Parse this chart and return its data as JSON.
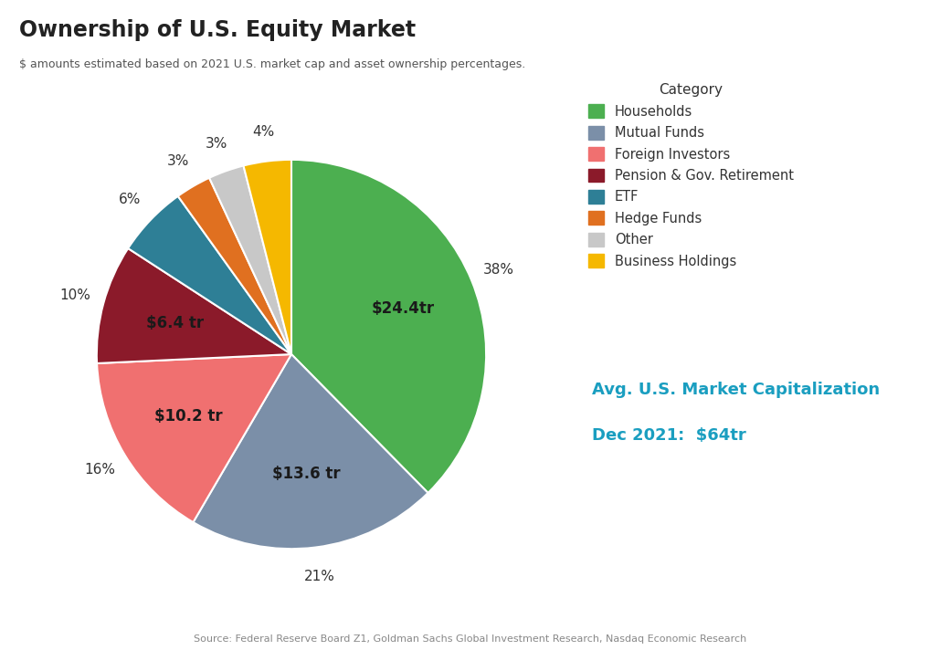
{
  "title": "Ownership of U.S. Equity Market",
  "subtitle": "$ amounts estimated based on 2021 U.S. market cap and asset ownership percentages.",
  "categories": [
    "Households",
    "Mutual Funds",
    "Foreign Investors",
    "Pension & Gov. Retirement",
    "ETF",
    "Hedge Funds",
    "Other",
    "Business Holdings"
  ],
  "values": [
    38,
    21,
    16,
    10,
    6,
    3,
    3,
    4
  ],
  "colors": [
    "#4caf50",
    "#7b8fa8",
    "#f07070",
    "#8b1a2a",
    "#2e7f96",
    "#e07020",
    "#c8c8c8",
    "#f5b800"
  ],
  "labels_inside": [
    "$24.4tr",
    "$13.6 tr",
    "$10.2 tr",
    "$6.4 tr",
    "",
    "",
    "",
    ""
  ],
  "pct_labels": [
    "38%",
    "21%",
    "16%",
    "10%",
    "6%",
    "3%",
    "3%",
    "4%"
  ],
  "source": "Source: Federal Reserve Board Z1, Goldman Sachs Global Investment Research, Nasdaq Economic Research",
  "annotation_line1": "Avg. U.S. Market Capitalization",
  "annotation_line2": "Dec 2021:  $64tr",
  "annotation_color": "#1a9ec0",
  "background_color": "#ffffff",
  "startangle": 90
}
